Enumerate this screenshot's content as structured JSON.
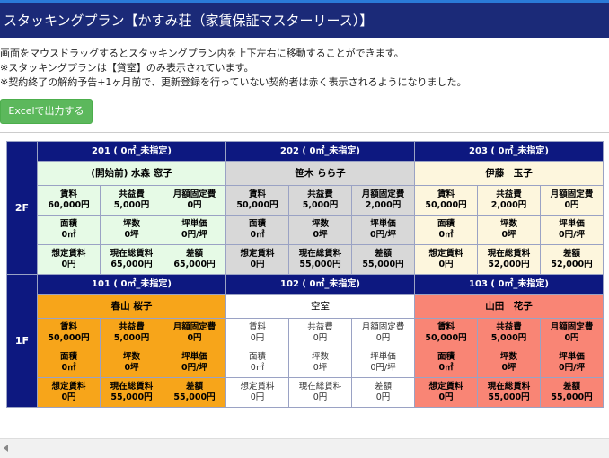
{
  "header": {
    "title": "スタッキングプラン【かすみ荘（家賃保証マスターリース）】"
  },
  "notes": [
    "画面をマウスドラッグするとスタッキングプラン内を上下左右に移動することができます。",
    "※スタッキングプランは【貸室】のみ表示されています。",
    "※契約終了の解約予告+1ヶ月前で、更新登録を行っていない契約者は赤く表示されるようになりました。"
  ],
  "toolbar": {
    "excel_label": "Excelで出力する"
  },
  "floors": [
    {
      "label": "2F",
      "rooms": [
        {
          "title": "201 ( 0㎡_未指定)",
          "tenant": "(開始前) 水森 窓子",
          "r1": [
            [
              "賃料",
              "60,000円"
            ],
            [
              "共益費",
              "5,000円"
            ],
            [
              "月額固定費",
              "0円"
            ]
          ],
          "r2": [
            [
              "面積",
              "0㎡"
            ],
            [
              "坪数",
              "0坪"
            ],
            [
              "坪単価",
              "0円/坪"
            ]
          ],
          "r3": [
            [
              "想定賃料",
              "0円"
            ],
            [
              "現在総賃料",
              "65,000円"
            ],
            [
              "差額",
              "65,000円"
            ]
          ]
        },
        {
          "title": "202 ( 0㎡_未指定)",
          "tenant": "笹木 らら子",
          "r1": [
            [
              "賃料",
              "50,000円"
            ],
            [
              "共益費",
              "5,000円"
            ],
            [
              "月額固定費",
              "2,000円"
            ]
          ],
          "r2": [
            [
              "面積",
              "0㎡"
            ],
            [
              "坪数",
              "0坪"
            ],
            [
              "坪単価",
              "0円/坪"
            ]
          ],
          "r3": [
            [
              "想定賃料",
              "0円"
            ],
            [
              "現在総賃料",
              "55,000円"
            ],
            [
              "差額",
              "55,000円"
            ]
          ]
        },
        {
          "title": "203 ( 0㎡_未指定)",
          "tenant": "伊藤　玉子",
          "r1": [
            [
              "賃料",
              "50,000円"
            ],
            [
              "共益費",
              "2,000円"
            ],
            [
              "月額固定費",
              "0円"
            ]
          ],
          "r2": [
            [
              "面積",
              "0㎡"
            ],
            [
              "坪数",
              "0坪"
            ],
            [
              "坪単価",
              "0円/坪"
            ]
          ],
          "r3": [
            [
              "想定賃料",
              "0円"
            ],
            [
              "現在総賃料",
              "52,000円"
            ],
            [
              "差額",
              "52,000円"
            ]
          ]
        }
      ]
    },
    {
      "label": "1F",
      "rooms": [
        {
          "title": "101 ( 0㎡_未指定)",
          "tenant": "春山 桜子",
          "r1": [
            [
              "賃料",
              "50,000円"
            ],
            [
              "共益費",
              "5,000円"
            ],
            [
              "月額固定費",
              "0円"
            ]
          ],
          "r2": [
            [
              "面積",
              "0㎡"
            ],
            [
              "坪数",
              "0坪"
            ],
            [
              "坪単価",
              "0円/坪"
            ]
          ],
          "r3": [
            [
              "想定賃料",
              "0円"
            ],
            [
              "現在総賃料",
              "55,000円"
            ],
            [
              "差額",
              "55,000円"
            ]
          ]
        },
        {
          "title": "102 ( 0㎡_未指定)",
          "tenant": "空室",
          "r1": [
            [
              "賃料",
              "0円"
            ],
            [
              "共益費",
              "0円"
            ],
            [
              "月額固定費",
              "0円"
            ]
          ],
          "r2": [
            [
              "面積",
              "0㎡"
            ],
            [
              "坪数",
              "0坪"
            ],
            [
              "坪単価",
              "0円/坪"
            ]
          ],
          "r3": [
            [
              "想定賃料",
              "0円"
            ],
            [
              "現在総賃料",
              "0円"
            ],
            [
              "差額",
              "0円"
            ]
          ]
        },
        {
          "title": "103 ( 0㎡_未指定)",
          "tenant": "山田　花子",
          "r1": [
            [
              "賃料",
              "50,000円"
            ],
            [
              "共益費",
              "5,000円"
            ],
            [
              "月額固定費",
              "0円"
            ]
          ],
          "r2": [
            [
              "面積",
              "0㎡"
            ],
            [
              "坪数",
              "0坪"
            ],
            [
              "坪単価",
              "0円/坪"
            ]
          ],
          "r3": [
            [
              "想定賃料",
              "0円"
            ],
            [
              "現在総賃料",
              "55,000円"
            ],
            [
              "差額",
              "55,000円"
            ]
          ]
        }
      ]
    }
  ],
  "colors": {
    "header_bg": "#1b2a78",
    "room_header_bg": "#0d1880",
    "room_201": "#e6fae6",
    "room_202": "#d8d8d8",
    "room_203": "#fdf6dd",
    "room_101": "#f7a51a",
    "room_102": "#ffffff",
    "room_103": "#f98575",
    "button": "#5cb85c"
  }
}
